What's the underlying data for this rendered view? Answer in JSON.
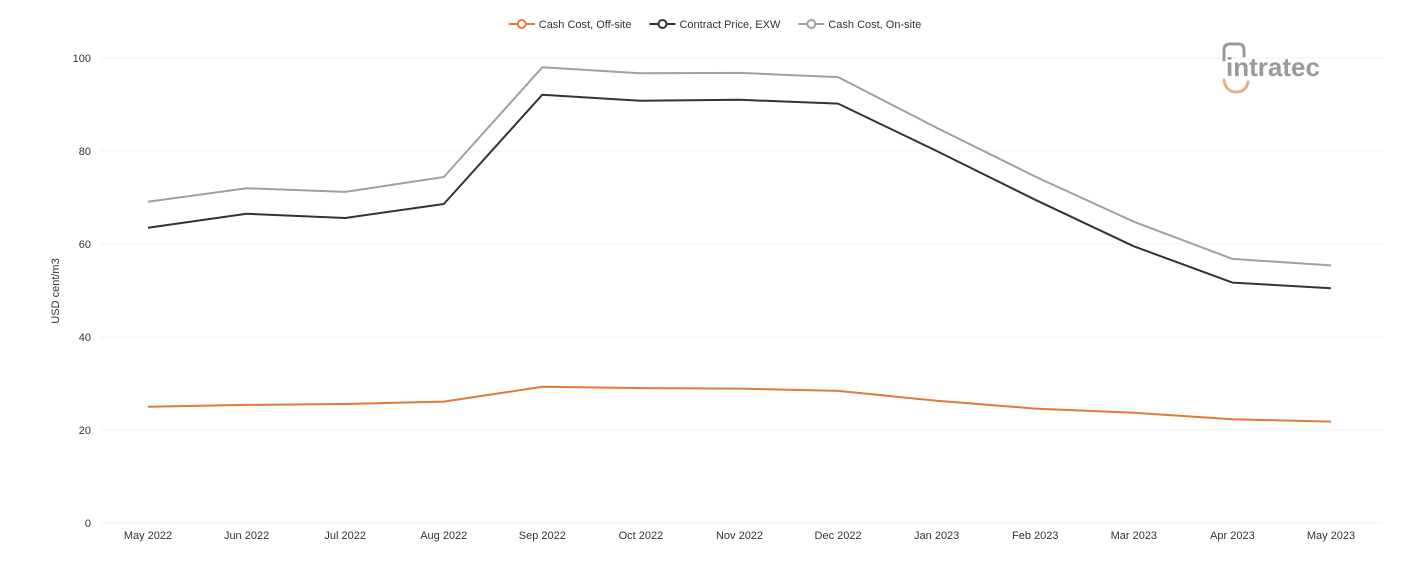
{
  "logo": {
    "text": "intratec"
  },
  "chart_data": {
    "type": "line",
    "title": "",
    "xlabel": "",
    "ylabel": "USD cent/m3",
    "categories": [
      "May 2022",
      "Jun 2022",
      "Jul 2022",
      "Aug 2022",
      "Sep 2022",
      "Oct 2022",
      "Nov 2022",
      "Dec 2022",
      "Jan 2023",
      "Feb 2023",
      "Mar 2023",
      "Apr 2023",
      "May 2023"
    ],
    "ylim": [
      0,
      100
    ],
    "yticks": [
      0,
      20,
      40,
      60,
      80,
      100
    ],
    "grid": true,
    "legend_position": "top-center",
    "series": [
      {
        "name": "Cash Cost, Off-site",
        "color": "#e07b39",
        "values": [
          25.0,
          25.4,
          25.6,
          26.1,
          29.3,
          29.0,
          28.9,
          28.4,
          26.3,
          24.6,
          23.7,
          22.3,
          21.8
        ]
      },
      {
        "name": "Contract Price, EXW",
        "color": "#333333",
        "values": [
          63.5,
          66.5,
          65.6,
          68.6,
          92.1,
          90.8,
          91.0,
          90.2,
          80.0,
          69.5,
          59.5,
          51.7,
          50.5
        ]
      },
      {
        "name": "Cash Cost, On-site",
        "color": "#a0a0a0",
        "values": [
          69.1,
          72.0,
          71.2,
          74.4,
          98.0,
          96.7,
          96.8,
          95.9,
          85.0,
          74.5,
          64.8,
          56.8,
          55.4
        ]
      }
    ]
  }
}
